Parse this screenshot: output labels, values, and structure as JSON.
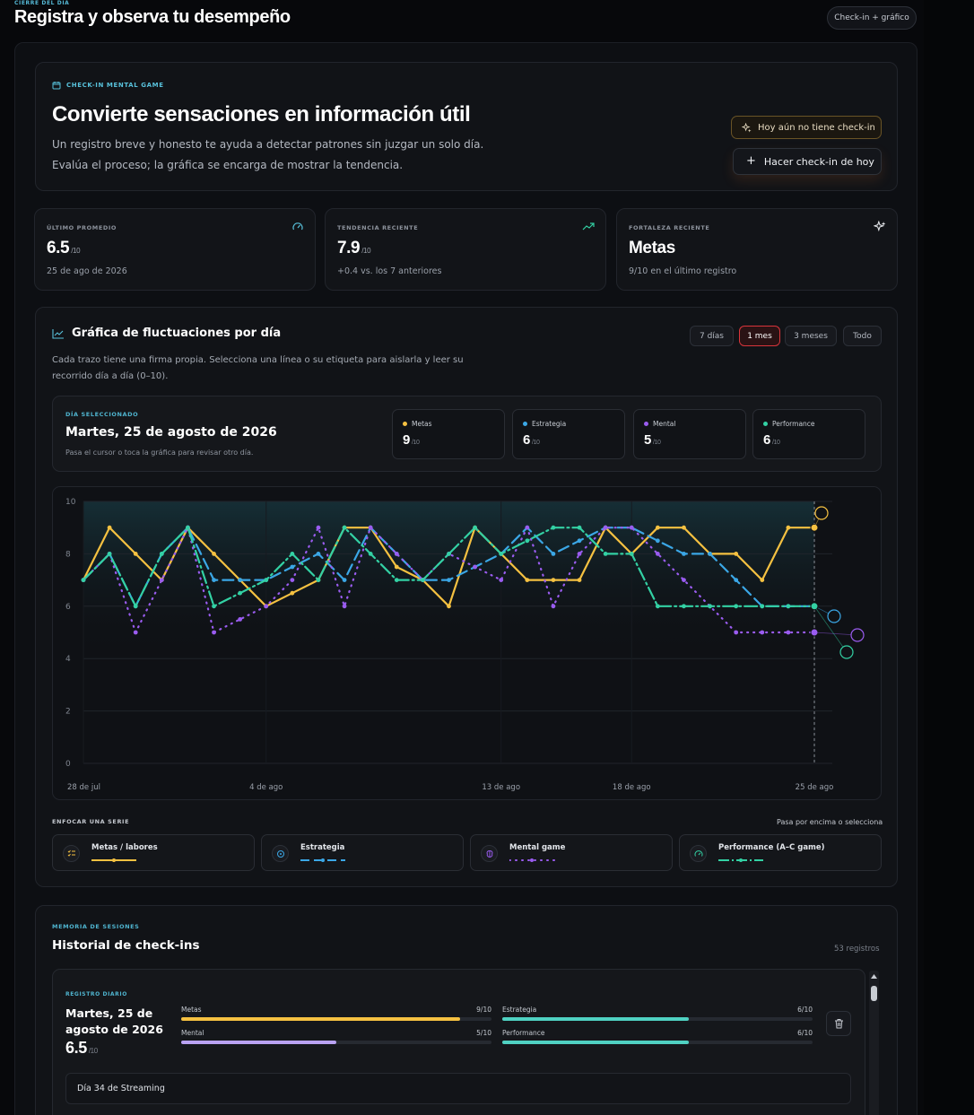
{
  "header": {
    "kicker": "CIERRE DEL DÍA",
    "title": "Registra y observa tu desempeño",
    "badge": "Check-in + gráfico"
  },
  "hero": {
    "kicker": "CHECK-IN MENTAL GAME",
    "title": "Convierte sensaciones en información útil",
    "desc1": "Un registro breve y honesto te ayuda a detectar patrones sin juzgar un solo día.",
    "desc2": "Evalúa el proceso; la gráfica se encarga de mostrar la tendencia.",
    "status": "Hoy aún no tiene check-in",
    "cta": "Hacer check-in de hoy"
  },
  "stats": [
    {
      "kicker": "ÚLTIMO PROMEDIO",
      "value": "6.5",
      "unit": "/10",
      "sub": "25 de ago de 2026",
      "icon": "gauge-icon"
    },
    {
      "kicker": "TENDENCIA RECIENTE",
      "value": "7.9",
      "unit": "/10",
      "sub": "+0.4 vs. los 7 anteriores",
      "icon": "trend-up-icon"
    },
    {
      "kicker": "FORTALEZA RECIENTE",
      "value": "Metas",
      "unit": "",
      "sub": "9/10 en el último registro",
      "icon": "sparkles-icon"
    }
  ],
  "chart_section": {
    "title": "Gráfica de fluctuaciones por día",
    "desc": "Cada trazo tiene una firma propia. Selecciona una línea o su etiqueta para aislarla y leer su recorrido día a día (0–10).",
    "ranges": [
      "7 días",
      "1 mes",
      "3 meses",
      "Todo"
    ],
    "active_range": "1 mes",
    "selected_day": {
      "kicker": "DÍA SELECCIONADO",
      "title": "Martes, 25 de agosto de 2026",
      "hint": "Pasa el cursor o toca la gráfica para revisar otro día.",
      "metrics": [
        {
          "label": "Metas",
          "value": "9",
          "unit": "/10",
          "color": "#f5c141"
        },
        {
          "label": "Estrategia",
          "value": "6",
          "unit": "/10",
          "color": "#3ba7e6"
        },
        {
          "label": "Mental",
          "value": "5",
          "unit": "/10",
          "color": "#9a5cf0"
        },
        {
          "label": "Performance",
          "value": "6",
          "unit": "/10",
          "color": "#33d1a4"
        }
      ]
    },
    "focus": {
      "kicker": "ENFOCAR UNA SERIE",
      "hint": "Pasa por encima o selecciona",
      "items": [
        "Metas / labores",
        "Estrategia",
        "Mental game",
        "Performance (A–C game)"
      ]
    }
  },
  "chart_data": {
    "type": "line",
    "x_tick_labels": [
      "28 de jul",
      "4 de ago",
      "13 de ago",
      "18 de ago",
      "25 de ago"
    ],
    "x_tick_index": [
      0,
      7,
      16,
      21,
      28
    ],
    "ylim": [
      0,
      10
    ],
    "y_ticks": [
      0,
      2,
      4,
      6,
      8,
      10
    ],
    "grid": true,
    "selected_index": 28,
    "series": [
      {
        "name": "Metas",
        "color": "#f5c141",
        "dash": "none",
        "icon": "checklist-icon",
        "values": [
          7,
          9,
          8,
          7,
          9,
          8,
          7,
          6,
          6.5,
          7,
          9,
          9,
          7.5,
          7,
          6,
          9,
          8,
          7,
          7,
          7,
          9,
          8,
          9,
          9,
          8,
          8,
          7,
          9,
          9
        ]
      },
      {
        "name": "Estrategia",
        "color": "#3ba7e6",
        "dash": "12 6",
        "icon": "target-icon",
        "values": [
          7,
          8,
          6,
          8,
          9,
          7,
          7,
          7,
          7.5,
          8,
          7,
          9,
          8,
          7,
          7,
          7.5,
          8,
          9,
          8,
          8.5,
          9,
          9,
          8.5,
          8,
          8,
          7,
          6,
          6,
          6
        ]
      },
      {
        "name": "Mental",
        "color": "#9a5cf0",
        "dash": "1 6",
        "icon": "brain-icon",
        "values": [
          7,
          8,
          5,
          7,
          9,
          5,
          5.5,
          6,
          7,
          9,
          6,
          9,
          8,
          7,
          8,
          7.5,
          7,
          9,
          6,
          8,
          9,
          9,
          8,
          7,
          6,
          5,
          5,
          5,
          5
        ]
      },
      {
        "name": "Performance",
        "color": "#33d1a4",
        "dash": "14 4 2 4",
        "icon": "gauge-icon",
        "values": [
          7,
          8,
          6,
          8,
          9,
          6,
          6.5,
          7,
          8,
          7,
          9,
          8,
          7,
          7,
          8,
          9,
          8,
          8.5,
          9,
          9,
          8,
          8,
          6,
          6,
          6,
          6,
          6,
          6,
          6
        ]
      }
    ]
  },
  "history": {
    "kicker": "MEMORIA DE SESIONES",
    "title": "Historial de check-ins",
    "count": "53 registros",
    "entry": {
      "kicker": "REGISTRO DIARIO",
      "date": "Martes, 25 de agosto de 2026",
      "score": "6.5",
      "unit": "/10",
      "bars": [
        {
          "label": "Metas",
          "value": "9/10",
          "fraction": 0.9,
          "color": "#f5c141"
        },
        {
          "label": "Estrategia",
          "value": "6/10",
          "fraction": 0.6,
          "color": "#4fd1c2"
        },
        {
          "label": "Mental",
          "value": "5/10",
          "fraction": 0.5,
          "color": "#b9a2f2"
        },
        {
          "label": "Performance",
          "value": "6/10",
          "fraction": 0.6,
          "color": "#4fd1c2"
        }
      ],
      "note": "Día 34 de Streaming"
    }
  }
}
